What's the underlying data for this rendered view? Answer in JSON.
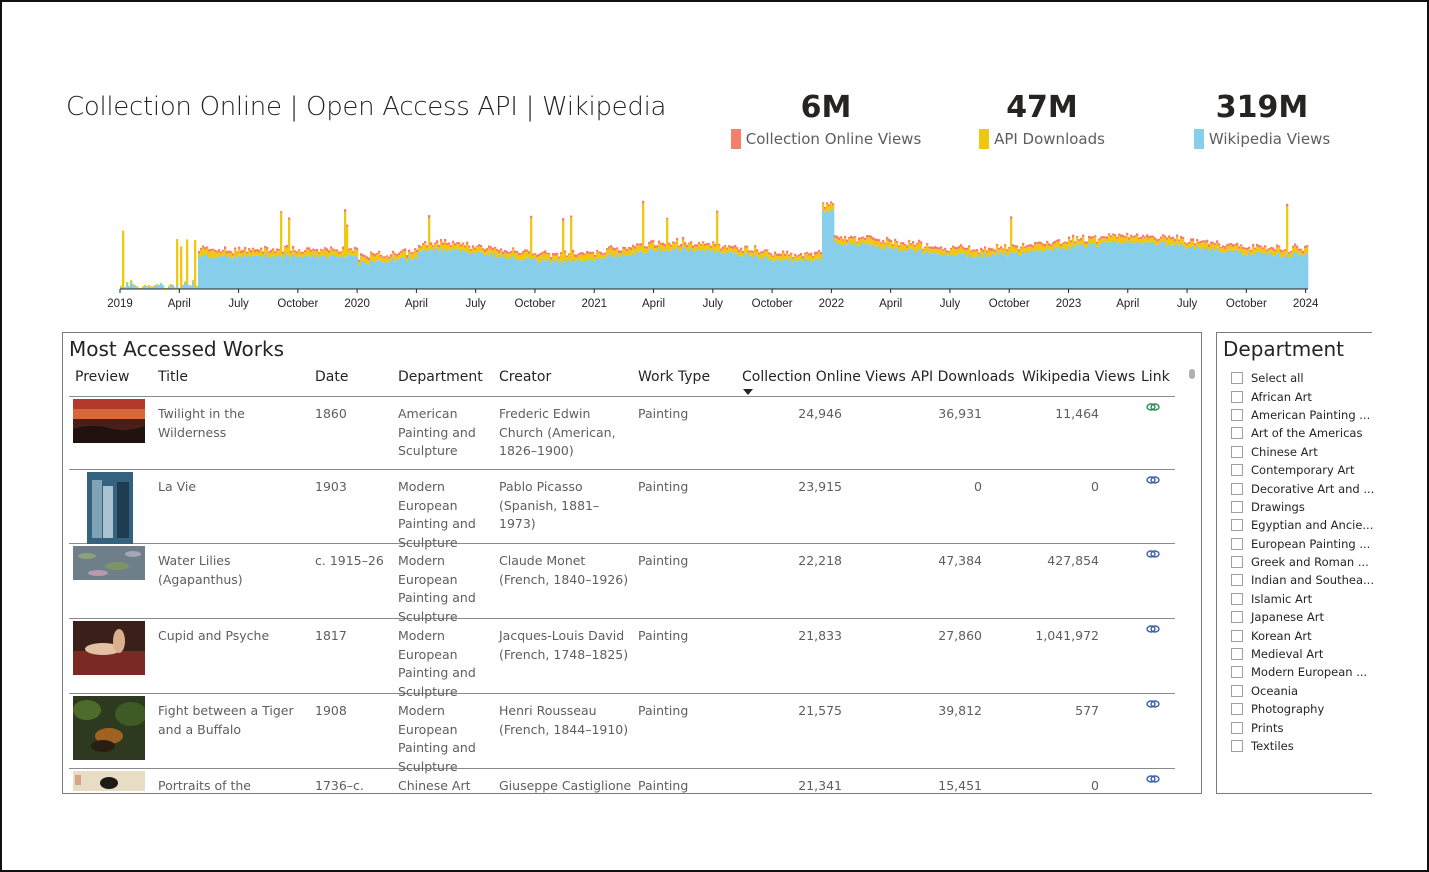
{
  "header": {
    "title": "Collection Online | Open Access API | Wikipedia"
  },
  "kpis": [
    {
      "value": "6M",
      "label": "Collection Online Views",
      "color": "#f4806c"
    },
    {
      "value": "47M",
      "label": "API Downloads",
      "color": "#f2c80f"
    },
    {
      "value": "319M",
      "label": "Wikipedia Views",
      "color": "#87ceeb"
    }
  ],
  "timeline": {
    "tick_labels": [
      "2019",
      "April",
      "July",
      "October",
      "2020",
      "April",
      "July",
      "October",
      "2021",
      "April",
      "July",
      "October",
      "2022",
      "April",
      "July",
      "October",
      "2023",
      "April",
      "July",
      "October",
      "2024"
    ],
    "series_colors": {
      "wikipedia": "#87ceeb",
      "api": "#f2c80f",
      "collection": "#f4806c"
    }
  },
  "table": {
    "title": "Most Accessed Works",
    "columns": [
      "Preview",
      "Title",
      "Date",
      "Department",
      "Creator",
      "Work Type",
      "Collection Online Views",
      "API Downloads",
      "Wikipedia Views",
      "Link"
    ],
    "rows": [
      {
        "title": "Twilight in the Wilderness",
        "date": "1860",
        "department": "American Painting and Sculpture",
        "creator": "Frederic Edwin Church (American, 1826–1900)",
        "work_type": "Painting",
        "collection_views": "24,946",
        "api_downloads": "36,931",
        "wikipedia_views": "11,464",
        "thumb": "sunset-painting-thumbnail"
      },
      {
        "title": "La Vie",
        "date": "1903",
        "department": "Modern European Painting and Sculpture",
        "creator": "Pablo Picasso (Spanish, 1881–1973)",
        "work_type": "Painting",
        "collection_views": "23,915",
        "api_downloads": "0",
        "wikipedia_views": "0",
        "thumb": "blue-figures-thumbnail"
      },
      {
        "title": "Water Lilies (Agapanthus)",
        "date": "c. 1915–26",
        "department": "Modern European Painting and Sculpture",
        "creator": "Claude Monet (French, 1840–1926)",
        "work_type": "Painting",
        "collection_views": "22,218",
        "api_downloads": "47,384",
        "wikipedia_views": "427,854",
        "thumb": "water-lilies-thumbnail"
      },
      {
        "title": "Cupid and Psyche",
        "date": "1817",
        "department": "Modern European Painting and Sculpture",
        "creator": "Jacques-Louis David (French, 1748–1825)",
        "work_type": "Painting",
        "collection_views": "21,833",
        "api_downloads": "27,860",
        "wikipedia_views": "1,041,972",
        "thumb": "figures-on-couch-thumbnail"
      },
      {
        "title": "Fight between a Tiger and a Buffalo",
        "date": "1908",
        "department": "Modern European Painting and Sculpture",
        "creator": "Henri Rousseau (French, 1844–1910)",
        "work_type": "Painting",
        "collection_views": "21,575",
        "api_downloads": "39,812",
        "wikipedia_views": "577",
        "thumb": "jungle-painting-thumbnail"
      },
      {
        "title": "Portraits of the",
        "date": "1736–c.",
        "department": "Chinese Art",
        "creator": "Giuseppe Castiglione",
        "work_type": "Painting",
        "collection_views": "21,341",
        "api_downloads": "15,451",
        "wikipedia_views": "0",
        "thumb": "portrait-scroll-thumbnail"
      }
    ]
  },
  "slicer": {
    "title": "Department",
    "items": [
      "Select all",
      "African Art",
      "American Painting ...",
      "Art of the Americas",
      "Chinese Art",
      "Contemporary Art",
      "Decorative Art and ...",
      "Drawings",
      "Egyptian and Ancie...",
      "European Painting ...",
      "Greek and Roman ...",
      "Indian and Southea...",
      "Islamic Art",
      "Japanese Art",
      "Korean Art",
      "Medieval Art",
      "Modern European ...",
      "Oceania",
      "Photography",
      "Prints",
      "Textiles"
    ]
  }
}
